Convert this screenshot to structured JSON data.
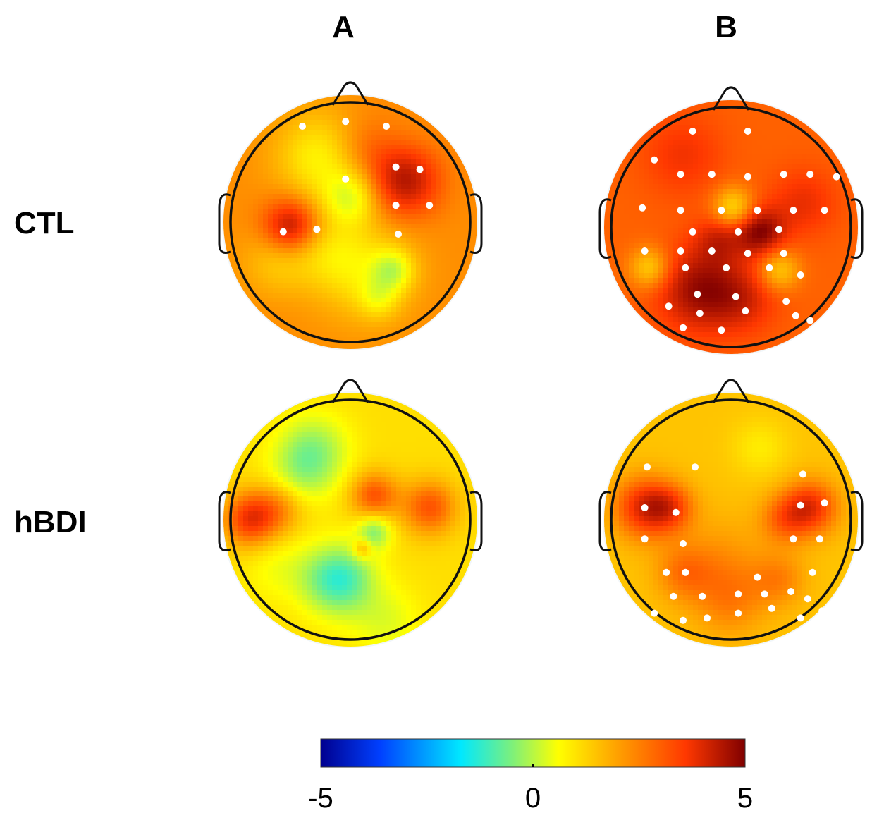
{
  "columns": [
    {
      "key": "A",
      "label": "A"
    },
    {
      "key": "B",
      "label": "B"
    }
  ],
  "rows": [
    {
      "key": "CTL",
      "label": "CTL"
    },
    {
      "key": "hBDI",
      "label": "hBDI"
    }
  ],
  "colorbar": {
    "min": -5,
    "max": 5,
    "ticks": [
      "-5",
      "0",
      "5"
    ],
    "colormap": [
      "#00008f",
      "#0040ff",
      "#00e8ff",
      "#7cf07c",
      "#ffff00",
      "#ffa000",
      "#ff3800",
      "#800000"
    ]
  },
  "maps": {
    "CTL_A": {
      "base": 2.4,
      "blobs": [
        [
          0.38,
          0.23,
          0.13,
          -1.6
        ],
        [
          0.5,
          0.4,
          0.08,
          -1.6
        ],
        [
          0.73,
          0.33,
          0.1,
          2.0
        ],
        [
          0.25,
          0.52,
          0.08,
          2.2
        ],
        [
          0.2,
          0.66,
          0.1,
          -0.9
        ],
        [
          0.55,
          0.7,
          0.14,
          -1.3
        ],
        [
          0.68,
          0.7,
          0.06,
          -1.6
        ],
        [
          0.4,
          0.62,
          0.1,
          -0.7
        ],
        [
          0.55,
          0.2,
          0.1,
          0.8
        ],
        [
          0.62,
          0.82,
          0.06,
          -1.0
        ]
      ]
    },
    "CTL_B": {
      "base": 3.0,
      "blobs": [
        [
          0.3,
          0.2,
          0.12,
          0.7
        ],
        [
          0.51,
          0.42,
          0.06,
          -1.8
        ],
        [
          0.62,
          0.52,
          0.07,
          1.9
        ],
        [
          0.16,
          0.67,
          0.06,
          -1.6
        ],
        [
          0.37,
          0.76,
          0.12,
          1.7
        ],
        [
          0.7,
          0.68,
          0.06,
          -1.5
        ],
        [
          0.45,
          0.55,
          0.07,
          1.0
        ],
        [
          0.8,
          0.4,
          0.1,
          0.8
        ],
        [
          0.55,
          0.8,
          0.1,
          0.9
        ]
      ]
    },
    "hBDI_A": {
      "base": 1.2,
      "blobs": [
        [
          0.08,
          0.5,
          0.08,
          2.4
        ],
        [
          0.2,
          0.45,
          0.08,
          1.2
        ],
        [
          0.35,
          0.2,
          0.1,
          -1.3
        ],
        [
          0.6,
          0.4,
          0.07,
          2.0
        ],
        [
          0.83,
          0.45,
          0.08,
          2.0
        ],
        [
          0.6,
          0.55,
          0.05,
          -1.8
        ],
        [
          0.45,
          0.75,
          0.1,
          -2.8
        ],
        [
          0.3,
          0.3,
          0.1,
          -1.2
        ],
        [
          0.2,
          0.7,
          0.1,
          -0.6
        ],
        [
          0.55,
          0.62,
          0.03,
          1.4
        ],
        [
          0.65,
          0.92,
          0.1,
          -0.8
        ]
      ]
    },
    "hBDI_B": {
      "base": 1.6,
      "blobs": [
        [
          0.14,
          0.45,
          0.09,
          2.3
        ],
        [
          0.25,
          0.45,
          0.07,
          1.4
        ],
        [
          0.83,
          0.45,
          0.08,
          2.2
        ],
        [
          0.72,
          0.5,
          0.07,
          1.2
        ],
        [
          0.62,
          0.2,
          0.08,
          -0.6
        ],
        [
          0.45,
          0.7,
          0.14,
          0.8
        ],
        [
          0.5,
          0.85,
          0.1,
          0.7
        ],
        [
          0.3,
          0.72,
          0.08,
          0.9
        ],
        [
          0.7,
          0.75,
          0.08,
          0.9
        ]
      ]
    }
  },
  "electrodes": {
    "CTL_A": [
      [
        0.3,
        0.1
      ],
      [
        0.48,
        0.08
      ],
      [
        0.65,
        0.1
      ],
      [
        0.48,
        0.32
      ],
      [
        0.69,
        0.27
      ],
      [
        0.79,
        0.28
      ],
      [
        0.69,
        0.43
      ],
      [
        0.83,
        0.43
      ],
      [
        0.22,
        0.54
      ],
      [
        0.36,
        0.53
      ],
      [
        0.7,
        0.55
      ]
    ],
    "CTL_B": [
      [
        0.34,
        0.1
      ],
      [
        0.57,
        0.1
      ],
      [
        0.18,
        0.22
      ],
      [
        0.29,
        0.28
      ],
      [
        0.42,
        0.28
      ],
      [
        0.57,
        0.29
      ],
      [
        0.72,
        0.28
      ],
      [
        0.83,
        0.28
      ],
      [
        0.94,
        0.29
      ],
      [
        0.13,
        0.42
      ],
      [
        0.29,
        0.43
      ],
      [
        0.46,
        0.43
      ],
      [
        0.61,
        0.43
      ],
      [
        0.76,
        0.43
      ],
      [
        0.89,
        0.43
      ],
      [
        0.34,
        0.52
      ],
      [
        0.53,
        0.52
      ],
      [
        0.7,
        0.51
      ],
      [
        0.14,
        0.6
      ],
      [
        0.29,
        0.6
      ],
      [
        0.42,
        0.6
      ],
      [
        0.57,
        0.61
      ],
      [
        0.72,
        0.61
      ],
      [
        0.31,
        0.67
      ],
      [
        0.48,
        0.67
      ],
      [
        0.66,
        0.67
      ],
      [
        0.79,
        0.7
      ],
      [
        0.36,
        0.78
      ],
      [
        0.52,
        0.79
      ],
      [
        0.73,
        0.81
      ],
      [
        0.24,
        0.83
      ],
      [
        0.37,
        0.86
      ],
      [
        0.56,
        0.85
      ],
      [
        0.77,
        0.87
      ],
      [
        0.83,
        0.89
      ],
      [
        0.3,
        0.92
      ],
      [
        0.46,
        0.93
      ],
      [
        0.87,
        0.92
      ]
    ]
  },
  "electrodes_hBDI_B": [
    [
      0.15,
      0.28
    ],
    [
      0.35,
      0.28
    ],
    [
      0.8,
      0.31
    ],
    [
      0.14,
      0.45
    ],
    [
      0.27,
      0.47
    ],
    [
      0.79,
      0.44
    ],
    [
      0.89,
      0.43
    ],
    [
      0.14,
      0.58
    ],
    [
      0.3,
      0.6
    ],
    [
      0.76,
      0.58
    ],
    [
      0.87,
      0.58
    ],
    [
      0.23,
      0.72
    ],
    [
      0.31,
      0.72
    ],
    [
      0.61,
      0.74
    ],
    [
      0.84,
      0.72
    ],
    [
      0.26,
      0.82
    ],
    [
      0.38,
      0.82
    ],
    [
      0.53,
      0.81
    ],
    [
      0.64,
      0.81
    ],
    [
      0.75,
      0.8
    ],
    [
      0.82,
      0.83
    ],
    [
      0.18,
      0.89
    ],
    [
      0.4,
      0.91
    ],
    [
      0.53,
      0.89
    ],
    [
      0.67,
      0.87
    ],
    [
      0.79,
      0.91
    ],
    [
      0.3,
      0.92
    ],
    [
      0.88,
      0.88
    ]
  ]
}
